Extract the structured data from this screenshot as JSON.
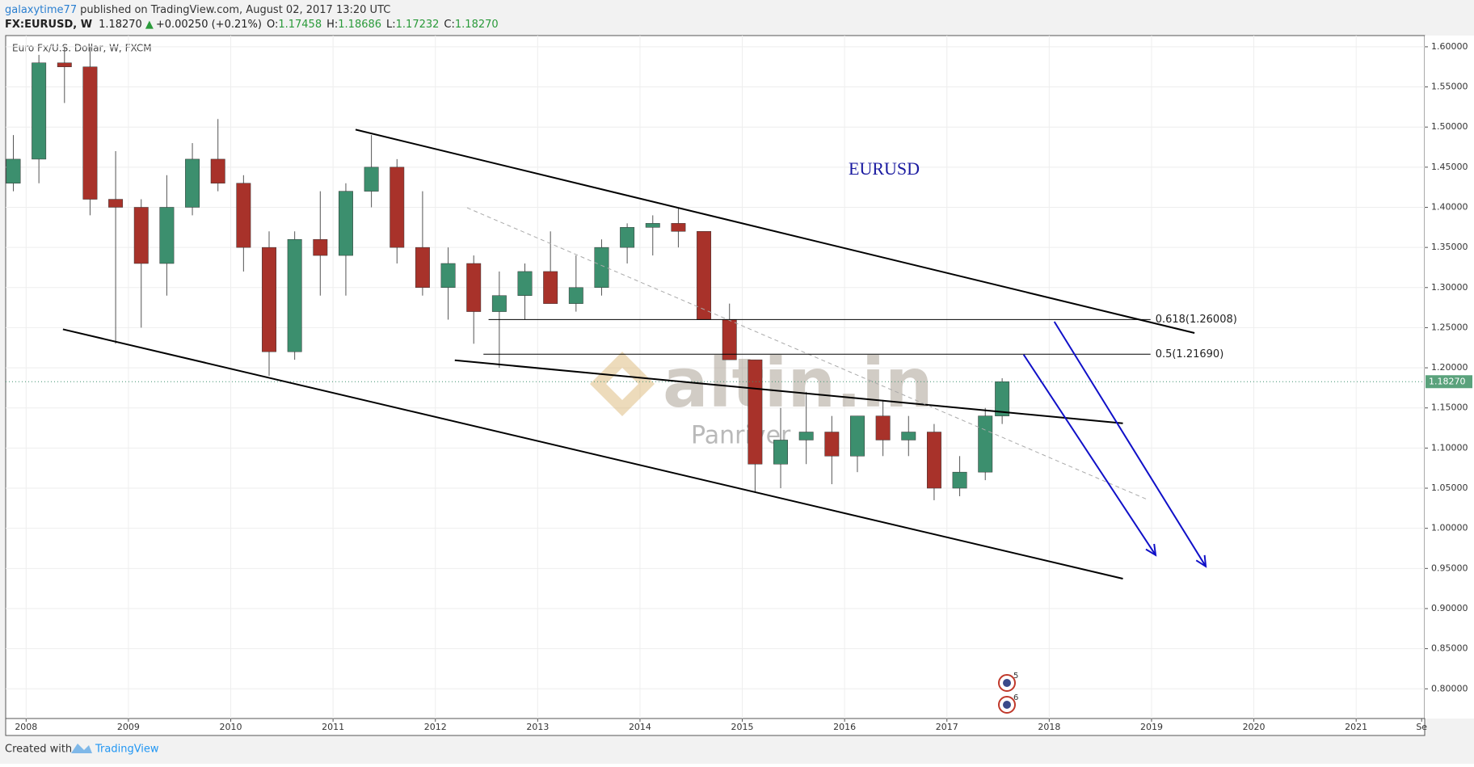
{
  "header": {
    "publisher": "galaxytime77",
    "published": "published on TradingView.com, August 02, 2017 13:20 UTC",
    "symbol": "FX:EURUSD, W",
    "last": "1.18270",
    "arrow": "▲",
    "change": "+0.00250 (+0.21%)",
    "ohlc": [
      {
        "key": "O:",
        "value": "1.17458"
      },
      {
        "key": "H:",
        "value": "1.18686"
      },
      {
        "key": "L:",
        "value": "1.17232"
      },
      {
        "key": "C:",
        "value": "1.18270"
      }
    ]
  },
  "chart_data": {
    "type": "candlestick",
    "legend": "Euro Fx/U.S. Dollar, W, FXCM",
    "annotation": "EURUSD",
    "up_color": "#3c8f6e",
    "down_color": "#a8322a",
    "x": [
      2007.875,
      2008.125,
      2008.375,
      2008.625,
      2008.875,
      2009.125,
      2009.375,
      2009.625,
      2009.875,
      2010.125,
      2010.375,
      2010.625,
      2010.875,
      2011.125,
      2011.375,
      2011.625,
      2011.875,
      2012.125,
      2012.375,
      2012.625,
      2012.875,
      2013.125,
      2013.375,
      2013.625,
      2013.875,
      2014.125,
      2014.375,
      2014.625,
      2014.875,
      2015.125,
      2015.375,
      2015.625,
      2015.875,
      2016.125,
      2016.375,
      2016.625,
      2016.875,
      2017.125,
      2017.375,
      2017.54
    ],
    "open": [
      1.43,
      1.46,
      1.58,
      1.575,
      1.41,
      1.4,
      1.33,
      1.4,
      1.46,
      1.43,
      1.35,
      1.22,
      1.36,
      1.34,
      1.42,
      1.45,
      1.35,
      1.3,
      1.33,
      1.27,
      1.29,
      1.32,
      1.28,
      1.3,
      1.35,
      1.375,
      1.38,
      1.37,
      1.26,
      1.21,
      1.08,
      1.11,
      1.12,
      1.09,
      1.14,
      1.11,
      1.12,
      1.05,
      1.07,
      1.14
    ],
    "high": [
      1.49,
      1.59,
      1.6,
      1.6,
      1.47,
      1.41,
      1.44,
      1.48,
      1.51,
      1.44,
      1.37,
      1.37,
      1.42,
      1.43,
      1.49,
      1.46,
      1.42,
      1.35,
      1.34,
      1.32,
      1.33,
      1.37,
      1.34,
      1.36,
      1.38,
      1.39,
      1.4,
      1.37,
      1.28,
      1.21,
      1.15,
      1.17,
      1.14,
      1.14,
      1.16,
      1.14,
      1.13,
      1.09,
      1.15,
      1.187
    ],
    "low": [
      1.42,
      1.43,
      1.53,
      1.39,
      1.23,
      1.25,
      1.29,
      1.39,
      1.42,
      1.32,
      1.19,
      1.21,
      1.29,
      1.29,
      1.4,
      1.33,
      1.29,
      1.26,
      1.23,
      1.2,
      1.26,
      1.28,
      1.27,
      1.29,
      1.33,
      1.34,
      1.35,
      1.26,
      1.21,
      1.045,
      1.05,
      1.08,
      1.055,
      1.07,
      1.09,
      1.09,
      1.035,
      1.04,
      1.06,
      1.13
    ],
    "close": [
      1.46,
      1.58,
      1.575,
      1.41,
      1.4,
      1.33,
      1.4,
      1.46,
      1.43,
      1.35,
      1.22,
      1.36,
      1.34,
      1.42,
      1.45,
      1.35,
      1.3,
      1.33,
      1.27,
      1.29,
      1.32,
      1.28,
      1.3,
      1.35,
      1.375,
      1.38,
      1.37,
      1.26,
      1.21,
      1.08,
      1.11,
      1.12,
      1.09,
      1.14,
      1.11,
      1.12,
      1.05,
      1.07,
      1.14,
      1.1827
    ],
    "last_price": {
      "value": 1.1827,
      "label": "1.18270"
    },
    "xlim": [
      2007.8,
      2021.67
    ],
    "xticks": [
      2008,
      2009,
      2010,
      2011,
      2012,
      2013,
      2014,
      2015,
      2016,
      2017,
      2018,
      2019,
      2020,
      2021,
      {
        "value": 2021.64,
        "label": "Se"
      }
    ],
    "ylim": [
      0.763,
      1.614
    ],
    "yticks": [
      {
        "value": 0.8,
        "label": "0.80000"
      },
      {
        "value": 0.85,
        "label": "0.85000"
      },
      {
        "value": 0.9,
        "label": "0.90000"
      },
      {
        "value": 0.95,
        "label": "0.95000"
      },
      {
        "value": 1.0,
        "label": "1.00000"
      },
      {
        "value": 1.05,
        "label": "1.05000"
      },
      {
        "value": 1.1,
        "label": "1.10000"
      },
      {
        "value": 1.15,
        "label": "1.15000"
      },
      {
        "value": 1.2,
        "label": "1.20000"
      },
      {
        "value": 1.25,
        "label": "1.25000"
      },
      {
        "value": 1.3,
        "label": "1.30000"
      },
      {
        "value": 1.35,
        "label": "1.35000"
      },
      {
        "value": 1.4,
        "label": "1.40000"
      },
      {
        "value": 1.45,
        "label": "1.45000"
      },
      {
        "value": 1.5,
        "label": "1.50000"
      },
      {
        "value": 1.55,
        "label": "1.55000"
      },
      {
        "value": 1.6,
        "label": "1.60000"
      }
    ],
    "grid": true,
    "trendlines": [
      {
        "x": [
          2011.22,
          2019.42
        ],
        "y": [
          1.4968,
          1.2434
        ],
        "color": "#000000",
        "style": "solid"
      },
      {
        "x": [
          2008.36,
          2018.72
        ],
        "y": [
          1.248,
          0.9372
        ],
        "color": "#000000",
        "style": "solid"
      },
      {
        "x": [
          2012.19,
          2018.72
        ],
        "y": [
          1.2094,
          1.1308
        ],
        "color": "#000000",
        "style": "solid"
      },
      {
        "x": [
          2012.31,
          2018.96
        ],
        "y": [
          1.3994,
          1.0358
        ],
        "color": "#aaaaaa",
        "style": "dashed"
      }
    ],
    "fib_levels": [
      {
        "x": [
          2012.52,
          2018.99
        ],
        "value": 1.26008,
        "label": "0.618(1.26008)"
      },
      {
        "x": [
          2012.47,
          2018.99
        ],
        "value": 1.2169,
        "label": "0.5(1.21690)"
      }
    ],
    "arrows": [
      {
        "x": [
          2017.75,
          2019.04
        ],
        "y": [
          1.2164,
          0.9666
        ],
        "color": "#1010c8"
      },
      {
        "x": [
          2018.05,
          2019.53
        ],
        "y": [
          1.2575,
          0.9525
        ],
        "color": "#1010c8"
      }
    ],
    "events": [
      "5",
      "6"
    ],
    "watermark": {
      "brand": "altin.in",
      "author": "Panriver"
    }
  },
  "footer": {
    "created": "Created with",
    "brand": "TradingView"
  }
}
